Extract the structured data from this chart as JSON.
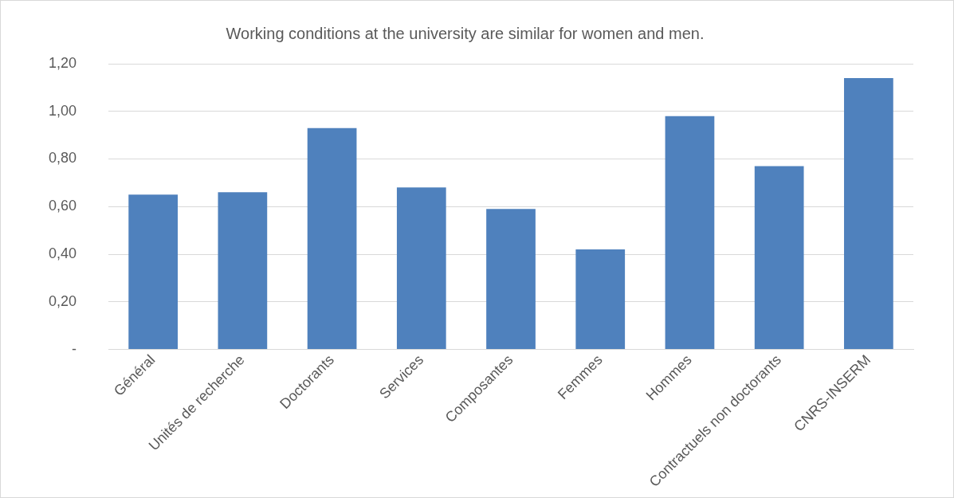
{
  "chart_data": {
    "type": "bar",
    "title": "Working conditions at the university are similar for women and men.",
    "categories": [
      "Général",
      "Unités de recherche",
      "Doctorants",
      "Services",
      "Composantes",
      "Femmes",
      "Hommes",
      "Contractuels non doctorants",
      "CNRS-INSERM"
    ],
    "values": [
      0.65,
      0.66,
      0.93,
      0.68,
      0.59,
      0.42,
      0.98,
      0.77,
      1.14
    ],
    "color": "#4f81bd",
    "ylim": [
      0,
      1.2
    ],
    "yticks": [
      {
        "value": 0,
        "label": "-"
      },
      {
        "value": 0.2,
        "label": "0,20"
      },
      {
        "value": 0.4,
        "label": "0,40"
      },
      {
        "value": 0.6,
        "label": "0,60"
      },
      {
        "value": 0.8,
        "label": "0,80"
      },
      {
        "value": 1,
        "label": "1,00"
      },
      {
        "value": 1.2,
        "label": "1,20"
      }
    ],
    "grid": "y",
    "legend": false
  }
}
